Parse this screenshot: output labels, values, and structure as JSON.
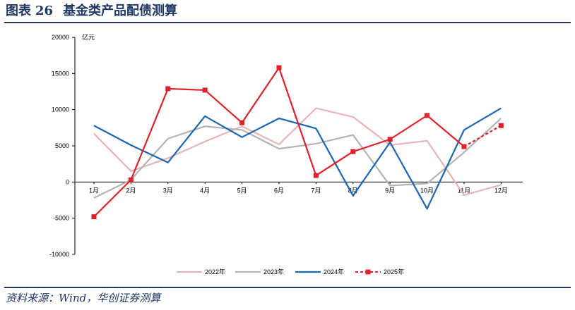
{
  "header": {
    "figure_label": "图表",
    "figure_number": "26",
    "title": "基金类产品配债测算"
  },
  "source": "资料来源：Wind，华创证券测算",
  "colors": {
    "title": "#1f3864",
    "s2022": "#e8b4b4",
    "s2023": "#b4b4b4",
    "s2024": "#1a66b0",
    "s2025": "#e0202a"
  },
  "chart_data": {
    "type": "line",
    "title": "基金类产品配债测算",
    "unit_label": "亿元",
    "xlabel": "",
    "ylabel": "亿元",
    "categories": [
      "1月",
      "2月",
      "3月",
      "4月",
      "5月",
      "6月",
      "7月",
      "8月",
      "9月",
      "10月",
      "11月",
      "12月"
    ],
    "ylim": [
      -10000,
      20000
    ],
    "yticks": [
      -10000,
      -5000,
      0,
      5000,
      10000,
      15000,
      20000
    ],
    "grid": false,
    "legend_position": "bottom",
    "series": [
      {
        "name": "2022年",
        "values": [
          6700,
          1500,
          3300,
          5600,
          7700,
          5200,
          10200,
          9000,
          5100,
          5700,
          -1800,
          -400
        ]
      },
      {
        "name": "2023年",
        "values": [
          -2200,
          300,
          6000,
          7700,
          7200,
          4600,
          5300,
          6500,
          -500,
          -200,
          4100,
          8800
        ]
      },
      {
        "name": "2024年",
        "values": [
          7800,
          5100,
          2700,
          9100,
          6200,
          8800,
          7400,
          -1900,
          5500,
          -3700,
          7200,
          10200
        ]
      },
      {
        "name": "2025年",
        "values": [
          -4800,
          300,
          12900,
          12700,
          8200,
          15800,
          900,
          4200,
          5900,
          9200,
          4900,
          7800
        ]
      }
    ]
  }
}
